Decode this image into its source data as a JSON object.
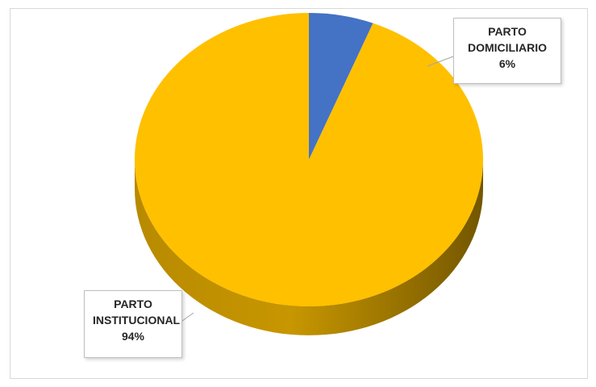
{
  "chart_data": {
    "type": "pie",
    "title": "",
    "slices": [
      {
        "label_line1": "PARTO",
        "label_line2": "DOMICILIARIO",
        "percent_label": "6%",
        "value": 6,
        "color": "#4472c4"
      },
      {
        "label_line1": "PARTO",
        "label_line2": "INSTITUCIONAL",
        "percent_label": "94%",
        "value": 94,
        "color": "#ffc000"
      }
    ],
    "style": "3d",
    "legend": "none"
  }
}
